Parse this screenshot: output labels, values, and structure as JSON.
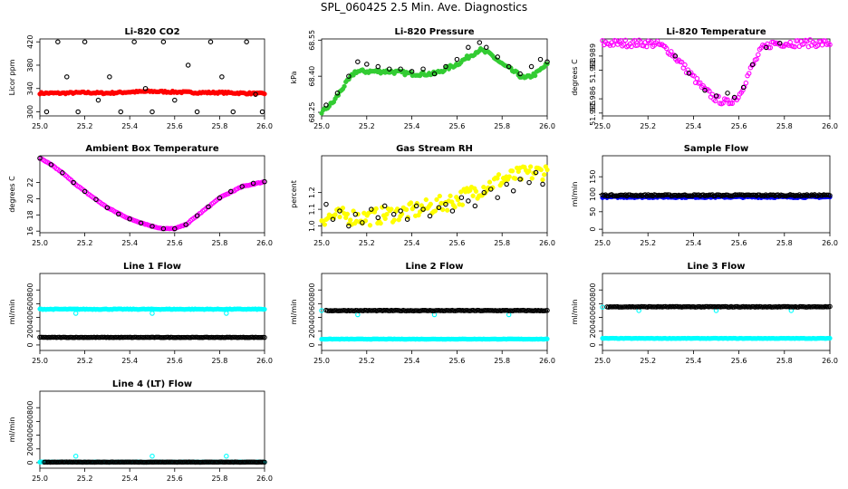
{
  "page_title": "SPL_060425  2.5 Min. Ave. Diagnostics",
  "colors": {
    "red": "#ff0000",
    "green": "#33cc33",
    "magenta": "#ff00ff",
    "yellow": "#ffff00",
    "blue": "#0000ff",
    "cyan": "#00ffff",
    "black": "#000000"
  },
  "chart_data": [
    {
      "type": "scatter",
      "title": "Li-820 CO2",
      "ylabel": "Licor ppm",
      "xlim": [
        25.0,
        26.0
      ],
      "ylim": [
        293,
        425
      ],
      "xticks": [
        "25.0",
        "25.2",
        "25.4",
        "25.6",
        "25.8",
        "26.0"
      ],
      "yticks": [
        "300",
        "340",
        "380",
        "420"
      ],
      "series": [
        {
          "color": "red",
          "shape": "filled",
          "kind": "dense",
          "x": [
            25.0,
            25.1,
            25.2,
            25.3,
            25.4,
            25.5,
            25.6,
            25.7,
            25.8,
            25.9,
            26.0
          ],
          "y": [
            332,
            332,
            333,
            332,
            334,
            335,
            334,
            333,
            333,
            332,
            331
          ],
          "noise": 1.5
        },
        {
          "color": "black",
          "shape": "open",
          "kind": "sparse",
          "x": [
            25.03,
            25.08,
            25.12,
            25.17,
            25.2,
            25.26,
            25.31,
            25.36,
            25.42,
            25.47,
            25.5,
            25.55,
            25.6,
            25.66,
            25.7,
            25.76,
            25.81,
            25.86,
            25.92,
            25.96,
            25.99
          ],
          "y": [
            300,
            420,
            360,
            300,
            420,
            320,
            360,
            300,
            420,
            340,
            300,
            420,
            320,
            380,
            300,
            420,
            360,
            300,
            420,
            330,
            300
          ]
        }
      ]
    },
    {
      "type": "scatter",
      "title": "Li-820 Pressure",
      "ylabel": "kPa",
      "xlim": [
        25.0,
        26.0
      ],
      "ylim": [
        68.235,
        68.555
      ],
      "xticks": [
        "25.0",
        "25.2",
        "25.4",
        "25.6",
        "25.8",
        "26.0"
      ],
      "yticks": [
        "68.25",
        "68.40",
        "68.55"
      ],
      "series": [
        {
          "color": "green",
          "shape": "filled",
          "kind": "dense",
          "x": [
            25.0,
            25.05,
            25.1,
            25.15,
            25.2,
            25.3,
            25.4,
            25.5,
            25.6,
            25.7,
            25.75,
            25.8,
            25.85,
            25.9,
            25.95,
            26.0
          ],
          "y": [
            68.25,
            68.29,
            68.36,
            68.42,
            68.42,
            68.42,
            68.41,
            68.41,
            68.45,
            68.51,
            68.49,
            68.45,
            68.42,
            68.39,
            68.41,
            68.45
          ],
          "noise": 0.008
        },
        {
          "color": "black",
          "shape": "open",
          "kind": "sparse",
          "x": [
            25.02,
            25.07,
            25.12,
            25.16,
            25.2,
            25.25,
            25.3,
            25.35,
            25.4,
            25.45,
            25.5,
            25.55,
            25.6,
            25.65,
            25.7,
            25.73,
            25.78,
            25.83,
            25.88,
            25.93,
            25.97,
            26.0
          ],
          "y": [
            68.28,
            68.33,
            68.4,
            68.46,
            68.45,
            68.44,
            68.43,
            68.43,
            68.42,
            68.43,
            68.41,
            68.44,
            68.47,
            68.52,
            68.54,
            68.52,
            68.48,
            68.44,
            68.41,
            68.44,
            68.47,
            68.46
          ]
        }
      ]
    },
    {
      "type": "scatter",
      "title": "Li-820 Temperature",
      "ylabel": "degrees C",
      "xlim": [
        25.0,
        26.0
      ],
      "ylim": [
        51.9848,
        51.9902
      ],
      "xticks": [
        "25.0",
        "25.2",
        "25.4",
        "25.6",
        "25.8",
        "26.0"
      ],
      "yticks": [
        "51.985",
        "51.986",
        "51.988",
        "51.989"
      ],
      "series": [
        {
          "color": "magenta",
          "shape": "open",
          "kind": "dense",
          "x": [
            25.0,
            25.2,
            25.25,
            25.3,
            25.35,
            25.4,
            25.45,
            25.5,
            25.55,
            25.6,
            25.65,
            25.7,
            25.75,
            25.8,
            26.0
          ],
          "y": [
            51.9899,
            51.9899,
            51.9898,
            51.9893,
            51.9884,
            51.9875,
            51.9866,
            51.986,
            51.9857,
            51.9862,
            51.988,
            51.9895,
            51.9899,
            51.9899,
            51.9899
          ],
          "noise": 0.00025
        },
        {
          "color": "black",
          "shape": "open",
          "kind": "sparse",
          "x": [
            25.32,
            25.38,
            25.45,
            25.5,
            25.55,
            25.58,
            25.62,
            25.66,
            25.72,
            25.78
          ],
          "y": [
            51.989,
            51.9878,
            51.9866,
            51.9862,
            51.9864,
            51.9861,
            51.9868,
            51.9884,
            51.9896,
            51.9899
          ]
        }
      ]
    },
    {
      "type": "scatter",
      "title": "Ambient Box Temperature",
      "ylabel": "degrees C",
      "xlim": [
        25.0,
        26.0
      ],
      "ylim": [
        15.8,
        25.3
      ],
      "xticks": [
        "25.0",
        "25.2",
        "25.4",
        "25.6",
        "25.8",
        "26.0"
      ],
      "yticks": [
        "16",
        "18",
        "20",
        "22"
      ],
      "series": [
        {
          "color": "magenta",
          "shape": "open",
          "kind": "dense",
          "x": [
            25.0,
            25.05,
            25.1,
            25.15,
            25.2,
            25.3,
            25.4,
            25.5,
            25.55,
            25.6,
            25.65,
            25.7,
            25.8,
            25.9,
            26.0
          ],
          "y": [
            25.0,
            24.2,
            23.2,
            22.0,
            20.9,
            18.9,
            17.5,
            16.6,
            16.3,
            16.3,
            16.8,
            17.9,
            20.1,
            21.5,
            22.1
          ],
          "noise": 0.05
        },
        {
          "color": "black",
          "shape": "open",
          "kind": "sparse",
          "x": [
            25.0,
            25.05,
            25.1,
            25.15,
            25.2,
            25.25,
            25.3,
            25.35,
            25.4,
            25.45,
            25.5,
            25.55,
            25.6,
            25.65,
            25.7,
            25.75,
            25.8,
            25.85,
            25.9,
            25.95,
            26.0
          ],
          "y": [
            25.0,
            24.2,
            23.2,
            22.0,
            20.9,
            19.9,
            18.9,
            18.1,
            17.5,
            17.0,
            16.6,
            16.3,
            16.3,
            16.8,
            17.9,
            19.0,
            20.1,
            20.9,
            21.5,
            21.9,
            22.1
          ]
        }
      ]
    },
    {
      "type": "scatter",
      "title": "Gas Stream RH",
      "ylabel": "percent",
      "xlim": [
        25.0,
        26.0
      ],
      "ylim": [
        0.96,
        1.42
      ],
      "xticks": [
        "25.0",
        "25.2",
        "25.4",
        "25.6",
        "25.8",
        "26.0"
      ],
      "yticks": [
        "1.0",
        "1.1",
        "1.2"
      ],
      "series": [
        {
          "color": "yellow",
          "shape": "filled",
          "kind": "dense",
          "x": [
            25.0,
            25.1,
            25.2,
            25.3,
            25.4,
            25.5,
            25.6,
            25.7,
            25.8,
            25.9,
            26.0
          ],
          "y": [
            1.05,
            1.06,
            1.05,
            1.07,
            1.09,
            1.12,
            1.16,
            1.22,
            1.28,
            1.31,
            1.33
          ],
          "noise": 0.05
        },
        {
          "color": "black",
          "shape": "open",
          "kind": "sparse",
          "x": [
            25.02,
            25.05,
            25.08,
            25.12,
            25.15,
            25.18,
            25.22,
            25.25,
            25.28,
            25.32,
            25.35,
            25.38,
            25.42,
            25.45,
            25.48,
            25.52,
            25.55,
            25.58,
            25.62,
            25.65,
            25.68,
            25.72,
            25.75,
            25.78,
            25.82,
            25.85,
            25.88,
            25.92,
            25.95,
            25.98
          ],
          "y": [
            1.13,
            1.04,
            1.09,
            1.0,
            1.07,
            1.02,
            1.1,
            1.05,
            1.12,
            1.07,
            1.09,
            1.04,
            1.12,
            1.1,
            1.06,
            1.11,
            1.13,
            1.09,
            1.17,
            1.15,
            1.12,
            1.2,
            1.22,
            1.17,
            1.25,
            1.21,
            1.28,
            1.26,
            1.32,
            1.25
          ]
        }
      ]
    },
    {
      "type": "scatter",
      "title": "Sample Flow",
      "ylabel": "ml/min",
      "xlim": [
        25.0,
        26.0
      ],
      "ylim": [
        -10,
        210
      ],
      "xticks": [
        "25.0",
        "25.2",
        "25.4",
        "25.6",
        "25.8",
        "26.0"
      ],
      "yticks": [
        "0",
        "50",
        "100",
        "150"
      ],
      "series": [
        {
          "color": "blue",
          "shape": "filled",
          "kind": "dense",
          "x": [
            25.0,
            26.0
          ],
          "y": [
            92,
            92
          ],
          "noise": 2
        },
        {
          "color": "black",
          "shape": "open",
          "kind": "dense",
          "x": [
            25.0,
            26.0
          ],
          "y": [
            97,
            97
          ],
          "noise": 2
        }
      ]
    },
    {
      "type": "scatter",
      "title": "Line 1 Flow",
      "ylabel": "ml/min",
      "xlim": [
        25.0,
        26.0
      ],
      "ylim": [
        -80,
        1040
      ],
      "xticks": [
        "25.0",
        "25.2",
        "25.4",
        "25.6",
        "25.8",
        "26.0"
      ],
      "yticks": [
        "0",
        "200",
        "400",
        "600",
        "800"
      ],
      "series": [
        {
          "color": "cyan",
          "shape": "filled",
          "kind": "dense",
          "x": [
            25.0,
            26.0
          ],
          "y": [
            520,
            520
          ],
          "noise": 5
        },
        {
          "color": "cyan",
          "shape": "open",
          "kind": "sparse",
          "x": [
            25.16,
            25.5,
            25.83
          ],
          "y": [
            460,
            460,
            460
          ]
        },
        {
          "color": "black",
          "shape": "open",
          "kind": "dense",
          "x": [
            25.0,
            26.0
          ],
          "y": [
            110,
            110
          ],
          "noise": 3
        }
      ]
    },
    {
      "type": "scatter",
      "title": "Line 2 Flow",
      "ylabel": "ml/min",
      "xlim": [
        25.0,
        26.0
      ],
      "ylim": [
        -80,
        1040
      ],
      "xticks": [
        "25.0",
        "25.2",
        "25.4",
        "25.6",
        "25.8",
        "26.0"
      ],
      "yticks": [
        "0",
        "200",
        "400",
        "600",
        "800"
      ],
      "series": [
        {
          "color": "cyan",
          "shape": "filled",
          "kind": "dense",
          "x": [
            25.0,
            26.0
          ],
          "y": [
            85,
            85
          ],
          "noise": 3
        },
        {
          "color": "cyan",
          "shape": "open",
          "kind": "sparse",
          "x": [
            25.0,
            25.16,
            25.5,
            25.83
          ],
          "y": [
            500,
            440,
            440,
            440
          ]
        },
        {
          "color": "black",
          "shape": "open",
          "kind": "dense",
          "x": [
            25.02,
            26.0
          ],
          "y": [
            500,
            500
          ],
          "noise": 5
        }
      ]
    },
    {
      "type": "scatter",
      "title": "Line 3 Flow",
      "ylabel": "ml/min",
      "xlim": [
        25.0,
        26.0
      ],
      "ylim": [
        -80,
        1040
      ],
      "xticks": [
        "25.0",
        "25.2",
        "25.4",
        "25.6",
        "25.8",
        "26.0"
      ],
      "yticks": [
        "0",
        "200",
        "400",
        "600",
        "800"
      ],
      "series": [
        {
          "color": "cyan",
          "shape": "filled",
          "kind": "dense",
          "x": [
            25.0,
            26.0
          ],
          "y": [
            95,
            95
          ],
          "noise": 3
        },
        {
          "color": "cyan",
          "shape": "open",
          "kind": "sparse",
          "x": [
            25.0,
            25.16,
            25.5,
            25.83
          ],
          "y": [
            550,
            500,
            500,
            500
          ]
        },
        {
          "color": "black",
          "shape": "open",
          "kind": "dense",
          "x": [
            25.02,
            26.0
          ],
          "y": [
            555,
            555
          ],
          "noise": 5
        }
      ]
    },
    {
      "type": "scatter",
      "title": "Line 4 (LT) Flow",
      "ylabel": "ml/min",
      "xlim": [
        25.0,
        26.0
      ],
      "ylim": [
        -80,
        1040
      ],
      "xticks": [
        "25.0",
        "25.2",
        "25.4",
        "25.6",
        "25.8",
        "26.0"
      ],
      "yticks": [
        "0",
        "200",
        "400",
        "600",
        "800"
      ],
      "series": [
        {
          "color": "cyan",
          "shape": "filled",
          "kind": "dense",
          "x": [
            25.0,
            26.0
          ],
          "y": [
            8,
            8
          ],
          "noise": 3
        },
        {
          "color": "cyan",
          "shape": "open",
          "kind": "sparse",
          "x": [
            25.16,
            25.5,
            25.83
          ],
          "y": [
            95,
            95,
            95
          ]
        },
        {
          "color": "black",
          "shape": "open",
          "kind": "dense",
          "x": [
            25.02,
            26.0
          ],
          "y": [
            8,
            8
          ],
          "noise": 2
        }
      ]
    }
  ]
}
